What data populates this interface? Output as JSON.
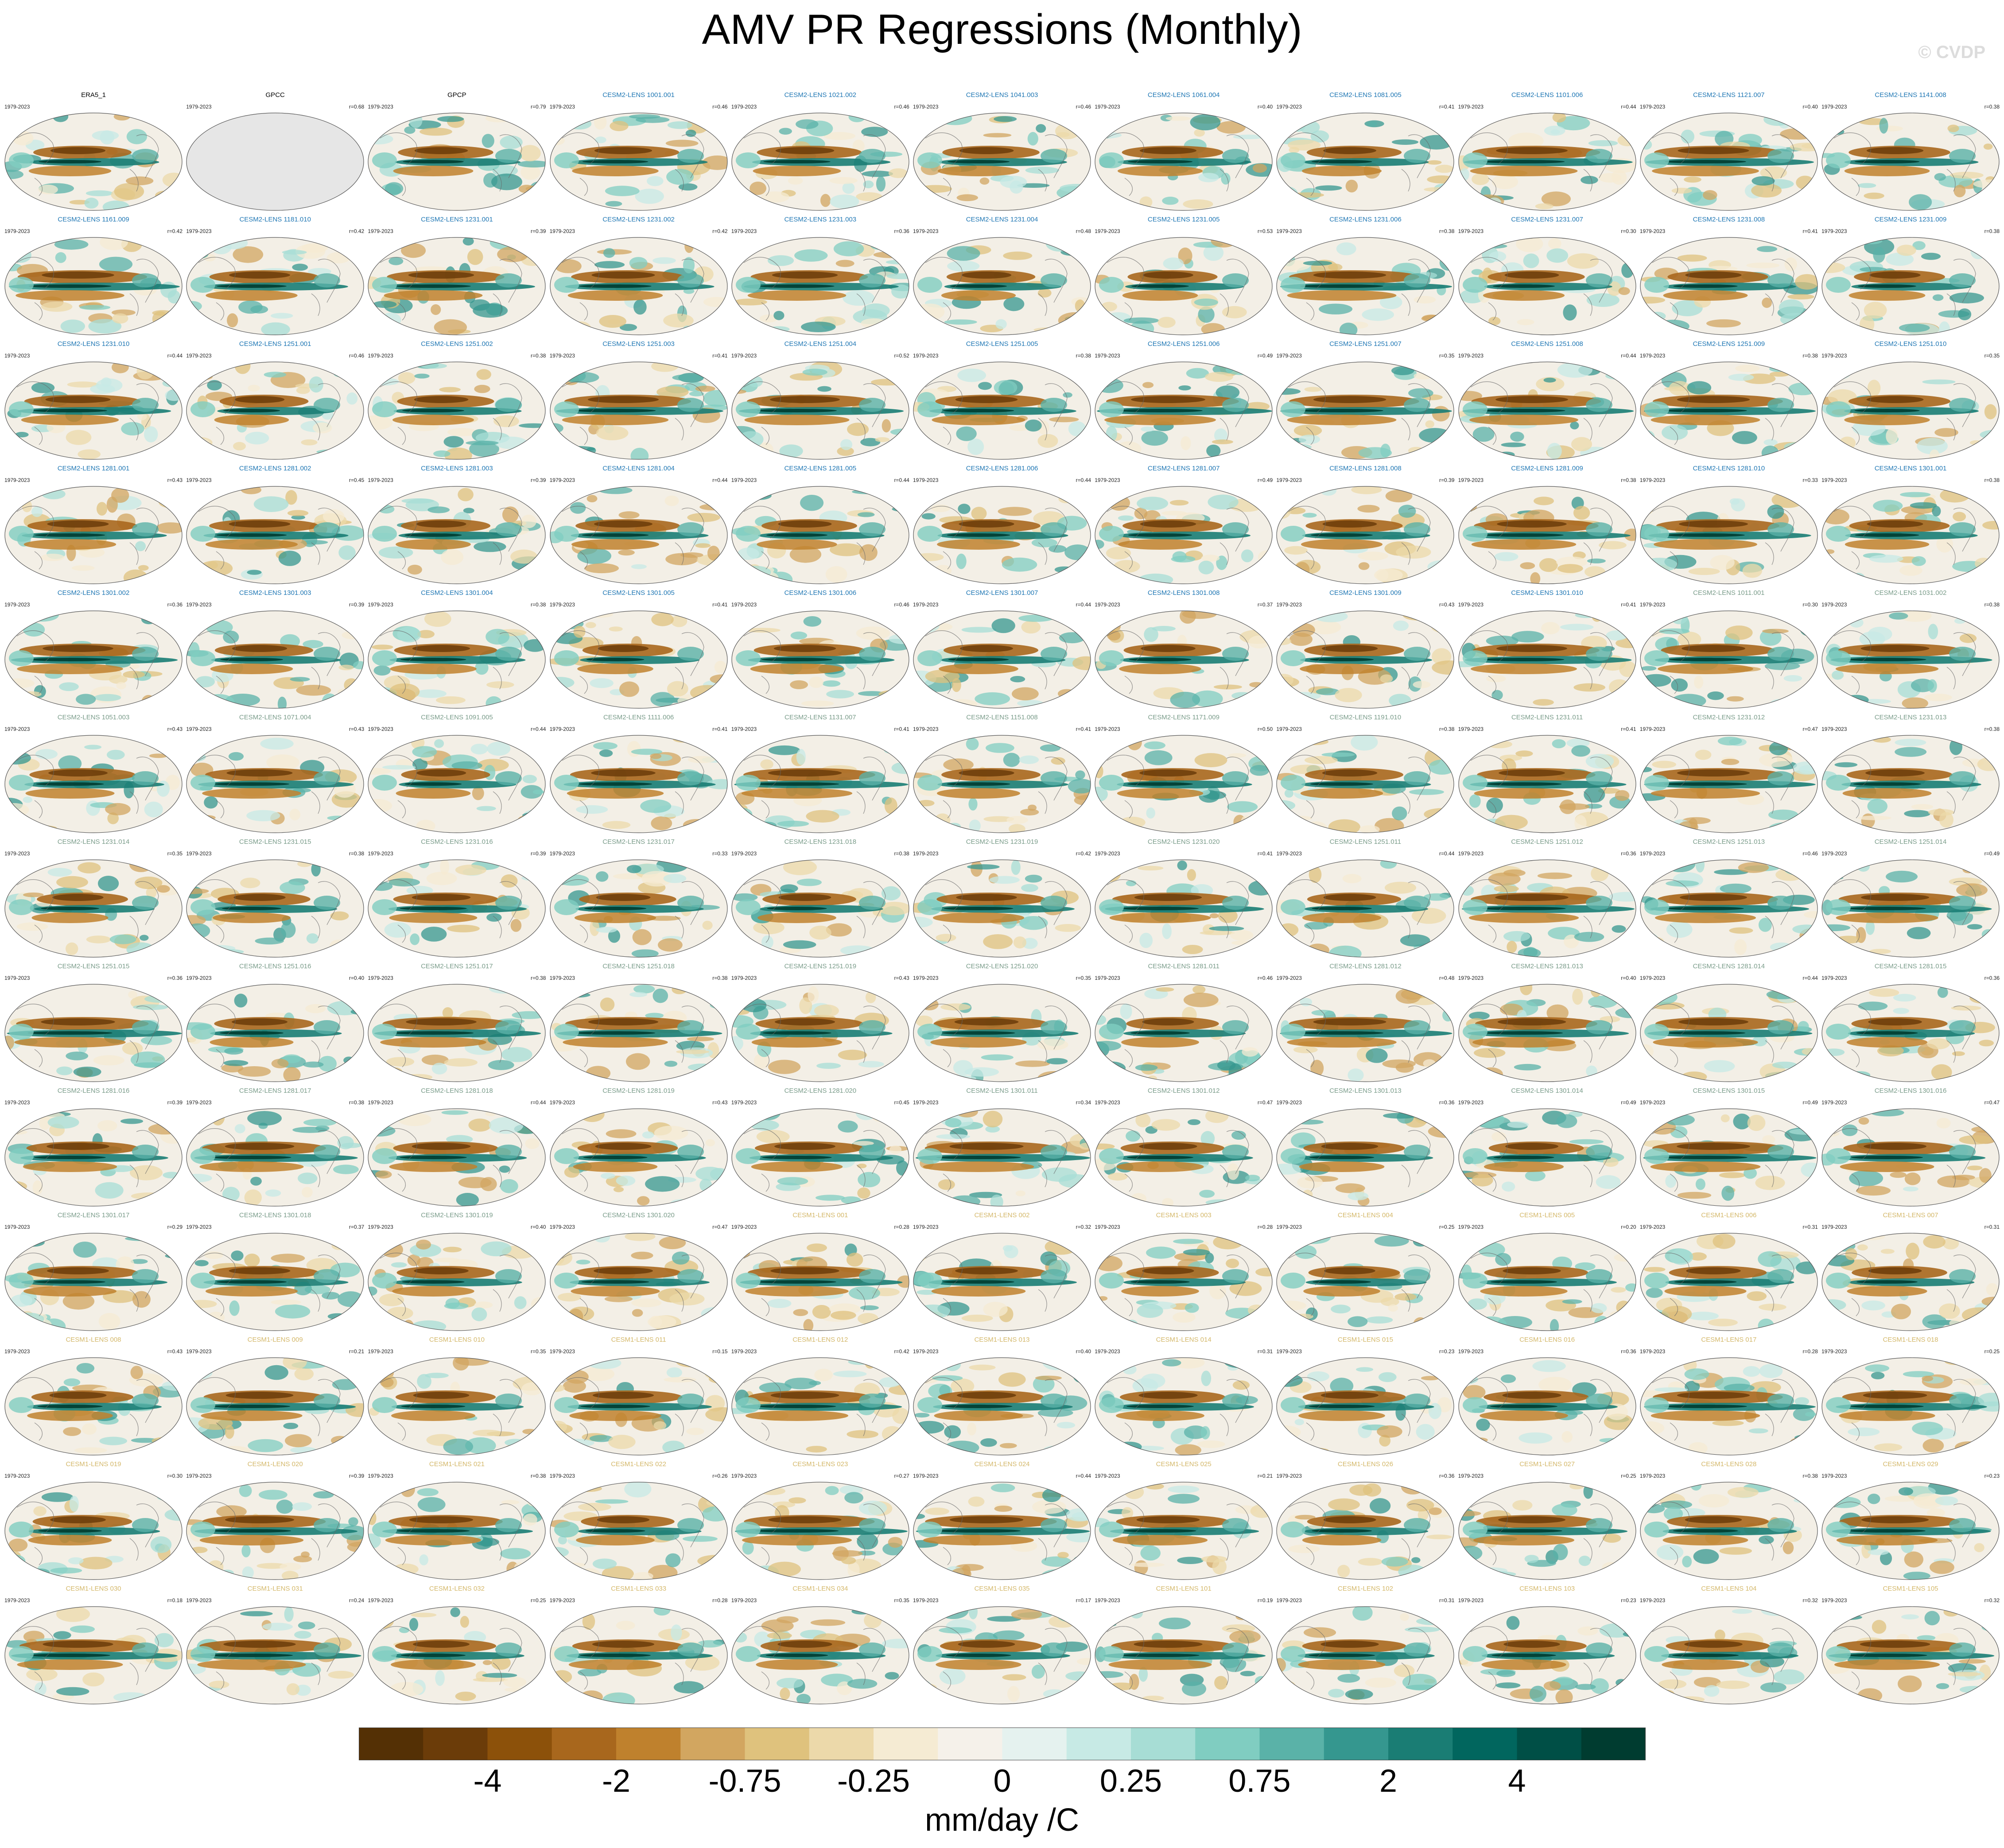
{
  "title": "AMV PR Regressions (Monthly)",
  "watermark": "© CVDP",
  "chart_data": {
    "type": "heatmap",
    "projection": "global ellipse maps, Pacific-centered",
    "grid": "13 rows x 11 columns of small multiples",
    "period": "1979-2023",
    "units": "mm/day /C",
    "colorbar_ticks": [
      "-4",
      "-2",
      "-0.75",
      "-0.25",
      "0",
      "0.25",
      "0.75",
      "2",
      "4"
    ],
    "colorbar_colors": [
      "#543005",
      "#6b3c09",
      "#8c510a",
      "#a8671d",
      "#bf812d",
      "#d2a660",
      "#dfc27d",
      "#ecd9aa",
      "#f5ebd3",
      "#f5f1ea",
      "#e5f2ef",
      "#c7eae5",
      "#a7ddd5",
      "#80cdc1",
      "#5ab2a8",
      "#35978f",
      "#1a7d74",
      "#01665e",
      "#004f46",
      "#003c30"
    ],
    "dataset_colors": {
      "obs": "#000000",
      "CESM2-LENS": "#1f77b4",
      "CESM2-LENS-light": "#7a9c8a",
      "CESM1-LENS": "#d4b86a"
    },
    "panels": [
      {
        "name": "ERA5_1",
        "r": "",
        "kind": "obs"
      },
      {
        "name": "GPCC",
        "r": "r=0.68",
        "kind": "obs",
        "missing": true
      },
      {
        "name": "GPCP",
        "r": "r=0.79",
        "kind": "obs"
      },
      {
        "name": "CESM2-LENS 1001.001",
        "r": "r=0.46",
        "kind": "CESM2-LENS"
      },
      {
        "name": "CESM2-LENS 1021.002",
        "r": "r=0.46",
        "kind": "CESM2-LENS"
      },
      {
        "name": "CESM2-LENS 1041.003",
        "r": "r=0.46",
        "kind": "CESM2-LENS"
      },
      {
        "name": "CESM2-LENS 1061.004",
        "r": "r=0.40",
        "kind": "CESM2-LENS"
      },
      {
        "name": "CESM2-LENS 1081.005",
        "r": "r=0.41",
        "kind": "CESM2-LENS"
      },
      {
        "name": "CESM2-LENS 1101.006",
        "r": "r=0.44",
        "kind": "CESM2-LENS"
      },
      {
        "name": "CESM2-LENS 1121.007",
        "r": "r=0.40",
        "kind": "CESM2-LENS"
      },
      {
        "name": "CESM2-LENS 1141.008",
        "r": "r=0.38",
        "kind": "CESM2-LENS"
      },
      {
        "name": "CESM2-LENS 1161.009",
        "r": "r=0.42",
        "kind": "CESM2-LENS"
      },
      {
        "name": "CESM2-LENS 1181.010",
        "r": "r=0.42",
        "kind": "CESM2-LENS"
      },
      {
        "name": "CESM2-LENS 1231.001",
        "r": "r=0.39",
        "kind": "CESM2-LENS"
      },
      {
        "name": "CESM2-LENS 1231.002",
        "r": "r=0.42",
        "kind": "CESM2-LENS"
      },
      {
        "name": "CESM2-LENS 1231.003",
        "r": "r=0.36",
        "kind": "CESM2-LENS"
      },
      {
        "name": "CESM2-LENS 1231.004",
        "r": "r=0.48",
        "kind": "CESM2-LENS"
      },
      {
        "name": "CESM2-LENS 1231.005",
        "r": "r=0.53",
        "kind": "CESM2-LENS"
      },
      {
        "name": "CESM2-LENS 1231.006",
        "r": "r=0.38",
        "kind": "CESM2-LENS"
      },
      {
        "name": "CESM2-LENS 1231.007",
        "r": "r=0.30",
        "kind": "CESM2-LENS"
      },
      {
        "name": "CESM2-LENS 1231.008",
        "r": "r=0.41",
        "kind": "CESM2-LENS"
      },
      {
        "name": "CESM2-LENS 1231.009",
        "r": "r=0.38",
        "kind": "CESM2-LENS"
      },
      {
        "name": "CESM2-LENS 1231.010",
        "r": "r=0.44",
        "kind": "CESM2-LENS"
      },
      {
        "name": "CESM2-LENS 1251.001",
        "r": "r=0.46",
        "kind": "CESM2-LENS"
      },
      {
        "name": "CESM2-LENS 1251.002",
        "r": "r=0.38",
        "kind": "CESM2-LENS"
      },
      {
        "name": "CESM2-LENS 1251.003",
        "r": "r=0.41",
        "kind": "CESM2-LENS"
      },
      {
        "name": "CESM2-LENS 1251.004",
        "r": "r=0.52",
        "kind": "CESM2-LENS"
      },
      {
        "name": "CESM2-LENS 1251.005",
        "r": "r=0.38",
        "kind": "CESM2-LENS"
      },
      {
        "name": "CESM2-LENS 1251.006",
        "r": "r=0.49",
        "kind": "CESM2-LENS"
      },
      {
        "name": "CESM2-LENS 1251.007",
        "r": "r=0.35",
        "kind": "CESM2-LENS"
      },
      {
        "name": "CESM2-LENS 1251.008",
        "r": "r=0.44",
        "kind": "CESM2-LENS"
      },
      {
        "name": "CESM2-LENS 1251.009",
        "r": "r=0.38",
        "kind": "CESM2-LENS"
      },
      {
        "name": "CESM2-LENS 1251.010",
        "r": "r=0.35",
        "kind": "CESM2-LENS"
      },
      {
        "name": "CESM2-LENS 1281.001",
        "r": "r=0.43",
        "kind": "CESM2-LENS"
      },
      {
        "name": "CESM2-LENS 1281.002",
        "r": "r=0.45",
        "kind": "CESM2-LENS"
      },
      {
        "name": "CESM2-LENS 1281.003",
        "r": "r=0.39",
        "kind": "CESM2-LENS"
      },
      {
        "name": "CESM2-LENS 1281.004",
        "r": "r=0.44",
        "kind": "CESM2-LENS"
      },
      {
        "name": "CESM2-LENS 1281.005",
        "r": "r=0.44",
        "kind": "CESM2-LENS"
      },
      {
        "name": "CESM2-LENS 1281.006",
        "r": "r=0.44",
        "kind": "CESM2-LENS"
      },
      {
        "name": "CESM2-LENS 1281.007",
        "r": "r=0.49",
        "kind": "CESM2-LENS"
      },
      {
        "name": "CESM2-LENS 1281.008",
        "r": "r=0.39",
        "kind": "CESM2-LENS"
      },
      {
        "name": "CESM2-LENS 1281.009",
        "r": "r=0.38",
        "kind": "CESM2-LENS"
      },
      {
        "name": "CESM2-LENS 1281.010",
        "r": "r=0.33",
        "kind": "CESM2-LENS"
      },
      {
        "name": "CESM2-LENS 1301.001",
        "r": "r=0.38",
        "kind": "CESM2-LENS"
      },
      {
        "name": "CESM2-LENS 1301.002",
        "r": "r=0.36",
        "kind": "CESM2-LENS"
      },
      {
        "name": "CESM2-LENS 1301.003",
        "r": "r=0.39",
        "kind": "CESM2-LENS"
      },
      {
        "name": "CESM2-LENS 1301.004",
        "r": "r=0.38",
        "kind": "CESM2-LENS"
      },
      {
        "name": "CESM2-LENS 1301.005",
        "r": "r=0.41",
        "kind": "CESM2-LENS"
      },
      {
        "name": "CESM2-LENS 1301.006",
        "r": "r=0.46",
        "kind": "CESM2-LENS"
      },
      {
        "name": "CESM2-LENS 1301.007",
        "r": "r=0.44",
        "kind": "CESM2-LENS"
      },
      {
        "name": "CESM2-LENS 1301.008",
        "r": "r=0.37",
        "kind": "CESM2-LENS"
      },
      {
        "name": "CESM2-LENS 1301.009",
        "r": "r=0.43",
        "kind": "CESM2-LENS"
      },
      {
        "name": "CESM2-LENS 1301.010",
        "r": "r=0.41",
        "kind": "CESM2-LENS"
      },
      {
        "name": "CESM2-LENS 1011.001",
        "r": "r=0.30",
        "kind": "CESM2-LENS-light"
      },
      {
        "name": "CESM2-LENS 1031.002",
        "r": "r=0.38",
        "kind": "CESM2-LENS-light"
      },
      {
        "name": "CESM2-LENS 1051.003",
        "r": "r=0.43",
        "kind": "CESM2-LENS-light"
      },
      {
        "name": "CESM2-LENS 1071.004",
        "r": "r=0.43",
        "kind": "CESM2-LENS-light"
      },
      {
        "name": "CESM2-LENS 1091.005",
        "r": "r=0.44",
        "kind": "CESM2-LENS-light"
      },
      {
        "name": "CESM2-LENS 1111.006",
        "r": "r=0.41",
        "kind": "CESM2-LENS-light"
      },
      {
        "name": "CESM2-LENS 1131.007",
        "r": "r=0.41",
        "kind": "CESM2-LENS-light"
      },
      {
        "name": "CESM2-LENS 1151.008",
        "r": "r=0.41",
        "kind": "CESM2-LENS-light"
      },
      {
        "name": "CESM2-LENS 1171.009",
        "r": "r=0.50",
        "kind": "CESM2-LENS-light"
      },
      {
        "name": "CESM2-LENS 1191.010",
        "r": "r=0.38",
        "kind": "CESM2-LENS-light"
      },
      {
        "name": "CESM2-LENS 1231.011",
        "r": "r=0.41",
        "kind": "CESM2-LENS-light"
      },
      {
        "name": "CESM2-LENS 1231.012",
        "r": "r=0.47",
        "kind": "CESM2-LENS-light"
      },
      {
        "name": "CESM2-LENS 1231.013",
        "r": "r=0.38",
        "kind": "CESM2-LENS-light"
      },
      {
        "name": "CESM2-LENS 1231.014",
        "r": "r=0.35",
        "kind": "CESM2-LENS-light"
      },
      {
        "name": "CESM2-LENS 1231.015",
        "r": "r=0.38",
        "kind": "CESM2-LENS-light"
      },
      {
        "name": "CESM2-LENS 1231.016",
        "r": "r=0.39",
        "kind": "CESM2-LENS-light"
      },
      {
        "name": "CESM2-LENS 1231.017",
        "r": "r=0.33",
        "kind": "CESM2-LENS-light"
      },
      {
        "name": "CESM2-LENS 1231.018",
        "r": "r=0.38",
        "kind": "CESM2-LENS-light"
      },
      {
        "name": "CESM2-LENS 1231.019",
        "r": "r=0.42",
        "kind": "CESM2-LENS-light"
      },
      {
        "name": "CESM2-LENS 1231.020",
        "r": "r=0.41",
        "kind": "CESM2-LENS-light"
      },
      {
        "name": "CESM2-LENS 1251.011",
        "r": "r=0.44",
        "kind": "CESM2-LENS-light"
      },
      {
        "name": "CESM2-LENS 1251.012",
        "r": "r=0.36",
        "kind": "CESM2-LENS-light"
      },
      {
        "name": "CESM2-LENS 1251.013",
        "r": "r=0.46",
        "kind": "CESM2-LENS-light"
      },
      {
        "name": "CESM2-LENS 1251.014",
        "r": "r=0.49",
        "kind": "CESM2-LENS-light"
      },
      {
        "name": "CESM2-LENS 1251.015",
        "r": "r=0.36",
        "kind": "CESM2-LENS-light"
      },
      {
        "name": "CESM2-LENS 1251.016",
        "r": "r=0.40",
        "kind": "CESM2-LENS-light"
      },
      {
        "name": "CESM2-LENS 1251.017",
        "r": "r=0.38",
        "kind": "CESM2-LENS-light"
      },
      {
        "name": "CESM2-LENS 1251.018",
        "r": "r=0.38",
        "kind": "CESM2-LENS-light"
      },
      {
        "name": "CESM2-LENS 1251.019",
        "r": "r=0.43",
        "kind": "CESM2-LENS-light"
      },
      {
        "name": "CESM2-LENS 1251.020",
        "r": "r=0.35",
        "kind": "CESM2-LENS-light"
      },
      {
        "name": "CESM2-LENS 1281.011",
        "r": "r=0.46",
        "kind": "CESM2-LENS-light"
      },
      {
        "name": "CESM2-LENS 1281.012",
        "r": "r=0.48",
        "kind": "CESM2-LENS-light"
      },
      {
        "name": "CESM2-LENS 1281.013",
        "r": "r=0.40",
        "kind": "CESM2-LENS-light"
      },
      {
        "name": "CESM2-LENS 1281.014",
        "r": "r=0.44",
        "kind": "CESM2-LENS-light"
      },
      {
        "name": "CESM2-LENS 1281.015",
        "r": "r=0.36",
        "kind": "CESM2-LENS-light"
      },
      {
        "name": "CESM2-LENS 1281.016",
        "r": "r=0.39",
        "kind": "CESM2-LENS-light"
      },
      {
        "name": "CESM2-LENS 1281.017",
        "r": "r=0.38",
        "kind": "CESM2-LENS-light"
      },
      {
        "name": "CESM2-LENS 1281.018",
        "r": "r=0.44",
        "kind": "CESM2-LENS-light"
      },
      {
        "name": "CESM2-LENS 1281.019",
        "r": "r=0.43",
        "kind": "CESM2-LENS-light"
      },
      {
        "name": "CESM2-LENS 1281.020",
        "r": "r=0.45",
        "kind": "CESM2-LENS-light"
      },
      {
        "name": "CESM2-LENS 1301.011",
        "r": "r=0.34",
        "kind": "CESM2-LENS-light"
      },
      {
        "name": "CESM2-LENS 1301.012",
        "r": "r=0.47",
        "kind": "CESM2-LENS-light"
      },
      {
        "name": "CESM2-LENS 1301.013",
        "r": "r=0.36",
        "kind": "CESM2-LENS-light"
      },
      {
        "name": "CESM2-LENS 1301.014",
        "r": "r=0.49",
        "kind": "CESM2-LENS-light"
      },
      {
        "name": "CESM2-LENS 1301.015",
        "r": "r=0.49",
        "kind": "CESM2-LENS-light"
      },
      {
        "name": "CESM2-LENS 1301.016",
        "r": "r=0.47",
        "kind": "CESM2-LENS-light"
      },
      {
        "name": "CESM2-LENS 1301.017",
        "r": "r=0.29",
        "kind": "CESM2-LENS-light"
      },
      {
        "name": "CESM2-LENS 1301.018",
        "r": "r=0.37",
        "kind": "CESM2-LENS-light"
      },
      {
        "name": "CESM2-LENS 1301.019",
        "r": "r=0.40",
        "kind": "CESM2-LENS-light"
      },
      {
        "name": "CESM2-LENS 1301.020",
        "r": "r=0.47",
        "kind": "CESM2-LENS-light"
      },
      {
        "name": "CESM1-LENS 001",
        "r": "r=0.28",
        "kind": "CESM1-LENS"
      },
      {
        "name": "CESM1-LENS 002",
        "r": "r=0.32",
        "kind": "CESM1-LENS"
      },
      {
        "name": "CESM1-LENS 003",
        "r": "r=0.28",
        "kind": "CESM1-LENS"
      },
      {
        "name": "CESM1-LENS 004",
        "r": "r=0.25",
        "kind": "CESM1-LENS"
      },
      {
        "name": "CESM1-LENS 005",
        "r": "r=0.20",
        "kind": "CESM1-LENS"
      },
      {
        "name": "CESM1-LENS 006",
        "r": "r=0.31",
        "kind": "CESM1-LENS"
      },
      {
        "name": "CESM1-LENS 007",
        "r": "r=0.31",
        "kind": "CESM1-LENS"
      },
      {
        "name": "CESM1-LENS 008",
        "r": "r=0.43",
        "kind": "CESM1-LENS"
      },
      {
        "name": "CESM1-LENS 009",
        "r": "r=0.21",
        "kind": "CESM1-LENS"
      },
      {
        "name": "CESM1-LENS 010",
        "r": "r=0.35",
        "kind": "CESM1-LENS"
      },
      {
        "name": "CESM1-LENS 011",
        "r": "r=0.15",
        "kind": "CESM1-LENS"
      },
      {
        "name": "CESM1-LENS 012",
        "r": "r=0.42",
        "kind": "CESM1-LENS"
      },
      {
        "name": "CESM1-LENS 013",
        "r": "r=0.40",
        "kind": "CESM1-LENS"
      },
      {
        "name": "CESM1-LENS 014",
        "r": "r=0.31",
        "kind": "CESM1-LENS"
      },
      {
        "name": "CESM1-LENS 015",
        "r": "r=0.23",
        "kind": "CESM1-LENS"
      },
      {
        "name": "CESM1-LENS 016",
        "r": "r=0.36",
        "kind": "CESM1-LENS"
      },
      {
        "name": "CESM1-LENS 017",
        "r": "r=0.28",
        "kind": "CESM1-LENS"
      },
      {
        "name": "CESM1-LENS 018",
        "r": "r=0.25",
        "kind": "CESM1-LENS"
      },
      {
        "name": "CESM1-LENS 019",
        "r": "r=0.30",
        "kind": "CESM1-LENS"
      },
      {
        "name": "CESM1-LENS 020",
        "r": "r=0.39",
        "kind": "CESM1-LENS"
      },
      {
        "name": "CESM1-LENS 021",
        "r": "r=0.38",
        "kind": "CESM1-LENS"
      },
      {
        "name": "CESM1-LENS 022",
        "r": "r=0.26",
        "kind": "CESM1-LENS"
      },
      {
        "name": "CESM1-LENS 023",
        "r": "r=0.27",
        "kind": "CESM1-LENS"
      },
      {
        "name": "CESM1-LENS 024",
        "r": "r=0.44",
        "kind": "CESM1-LENS"
      },
      {
        "name": "CESM1-LENS 025",
        "r": "r=0.21",
        "kind": "CESM1-LENS"
      },
      {
        "name": "CESM1-LENS 026",
        "r": "r=0.36",
        "kind": "CESM1-LENS"
      },
      {
        "name": "CESM1-LENS 027",
        "r": "r=0.25",
        "kind": "CESM1-LENS"
      },
      {
        "name": "CESM1-LENS 028",
        "r": "r=0.38",
        "kind": "CESM1-LENS"
      },
      {
        "name": "CESM1-LENS 029",
        "r": "r=0.23",
        "kind": "CESM1-LENS"
      },
      {
        "name": "CESM1-LENS 030",
        "r": "r=0.18",
        "kind": "CESM1-LENS"
      },
      {
        "name": "CESM1-LENS 031",
        "r": "r=0.24",
        "kind": "CESM1-LENS"
      },
      {
        "name": "CESM1-LENS 032",
        "r": "r=0.25",
        "kind": "CESM1-LENS"
      },
      {
        "name": "CESM1-LENS 033",
        "r": "r=0.28",
        "kind": "CESM1-LENS"
      },
      {
        "name": "CESM1-LENS 034",
        "r": "r=0.35",
        "kind": "CESM1-LENS"
      },
      {
        "name": "CESM1-LENS 035",
        "r": "r=0.17",
        "kind": "CESM1-LENS"
      },
      {
        "name": "CESM1-LENS 101",
        "r": "r=0.19",
        "kind": "CESM1-LENS"
      },
      {
        "name": "CESM1-LENS 102",
        "r": "r=0.31",
        "kind": "CESM1-LENS"
      },
      {
        "name": "CESM1-LENS 103",
        "r": "r=0.23",
        "kind": "CESM1-LENS"
      },
      {
        "name": "CESM1-LENS 104",
        "r": "r=0.32",
        "kind": "CESM1-LENS"
      },
      {
        "name": "CESM1-LENS 105",
        "r": "r=0.32",
        "kind": "CESM1-LENS"
      }
    ]
  }
}
